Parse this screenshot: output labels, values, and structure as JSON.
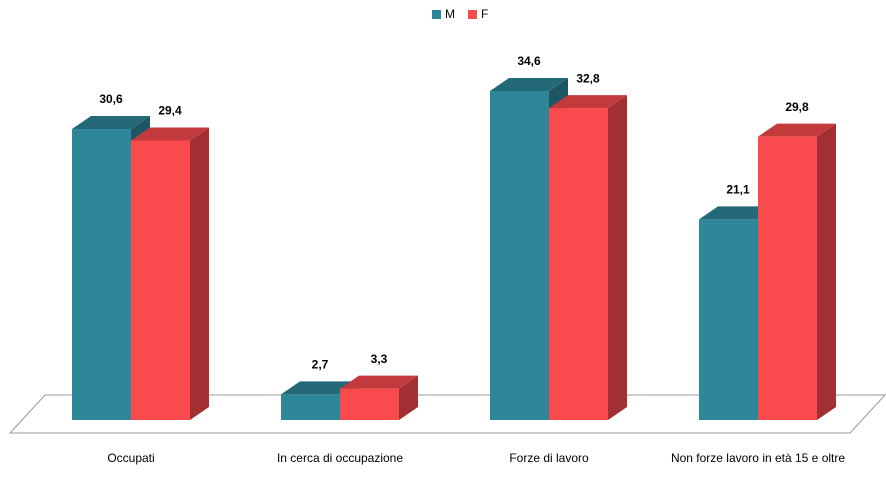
{
  "chart_data": {
    "type": "bar3d",
    "categories": [
      "Occupati",
      "In cerca di occupazione",
      "Forze di lavoro",
      "Non forze lavoro  in età 15 e oltre"
    ],
    "series": [
      {
        "name": "M",
        "color": "#2e8699",
        "values": [
          30.6,
          2.7,
          34.6,
          21.1
        ],
        "value_labels": [
          "30,6",
          "2,7",
          "34,6",
          "21,1"
        ]
      },
      {
        "name": "F",
        "color": "#f94a4d",
        "values": [
          29.4,
          3.3,
          32.8,
          29.8
        ],
        "value_labels": [
          "29,4",
          "3,3",
          "32,8",
          "29,8"
        ]
      }
    ],
    "legend": "top"
  }
}
